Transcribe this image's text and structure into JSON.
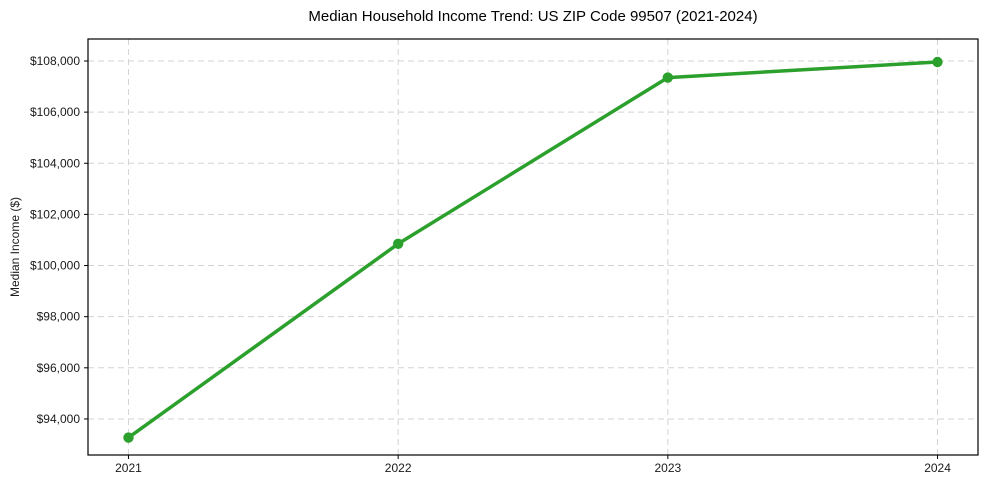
{
  "chart_data": {
    "type": "line",
    "title": "Median Household Income Trend: US ZIP Code 99507 (2021-2024)",
    "xlabel": "",
    "ylabel": "Median Income ($)",
    "x": [
      2021,
      2022,
      2023,
      2024
    ],
    "x_tick_labels": [
      "2021",
      "2022",
      "2023",
      "2024"
    ],
    "series": [
      {
        "name": "median-household-income",
        "values": [
          93270,
          100850,
          107350,
          107960
        ],
        "color": "#2ca02c"
      }
    ],
    "y_ticks": [
      94000,
      96000,
      98000,
      100000,
      102000,
      104000,
      106000,
      108000
    ],
    "y_tick_labels": [
      "$94,000",
      "$96,000",
      "$98,000",
      "$100,000",
      "$102,000",
      "$104,000",
      "$106,000",
      "$108,000"
    ],
    "xlim": [
      2020.85,
      2024.15
    ],
    "ylim": [
      92590,
      108860
    ],
    "grid": true,
    "legend_position": "none",
    "colors": {
      "line": "#2ca02c",
      "grid": "#d3d3d3",
      "spine": "#000000",
      "tick_text": "#1a1a1a",
      "title_text": "#000000",
      "background": "#ffffff"
    }
  }
}
